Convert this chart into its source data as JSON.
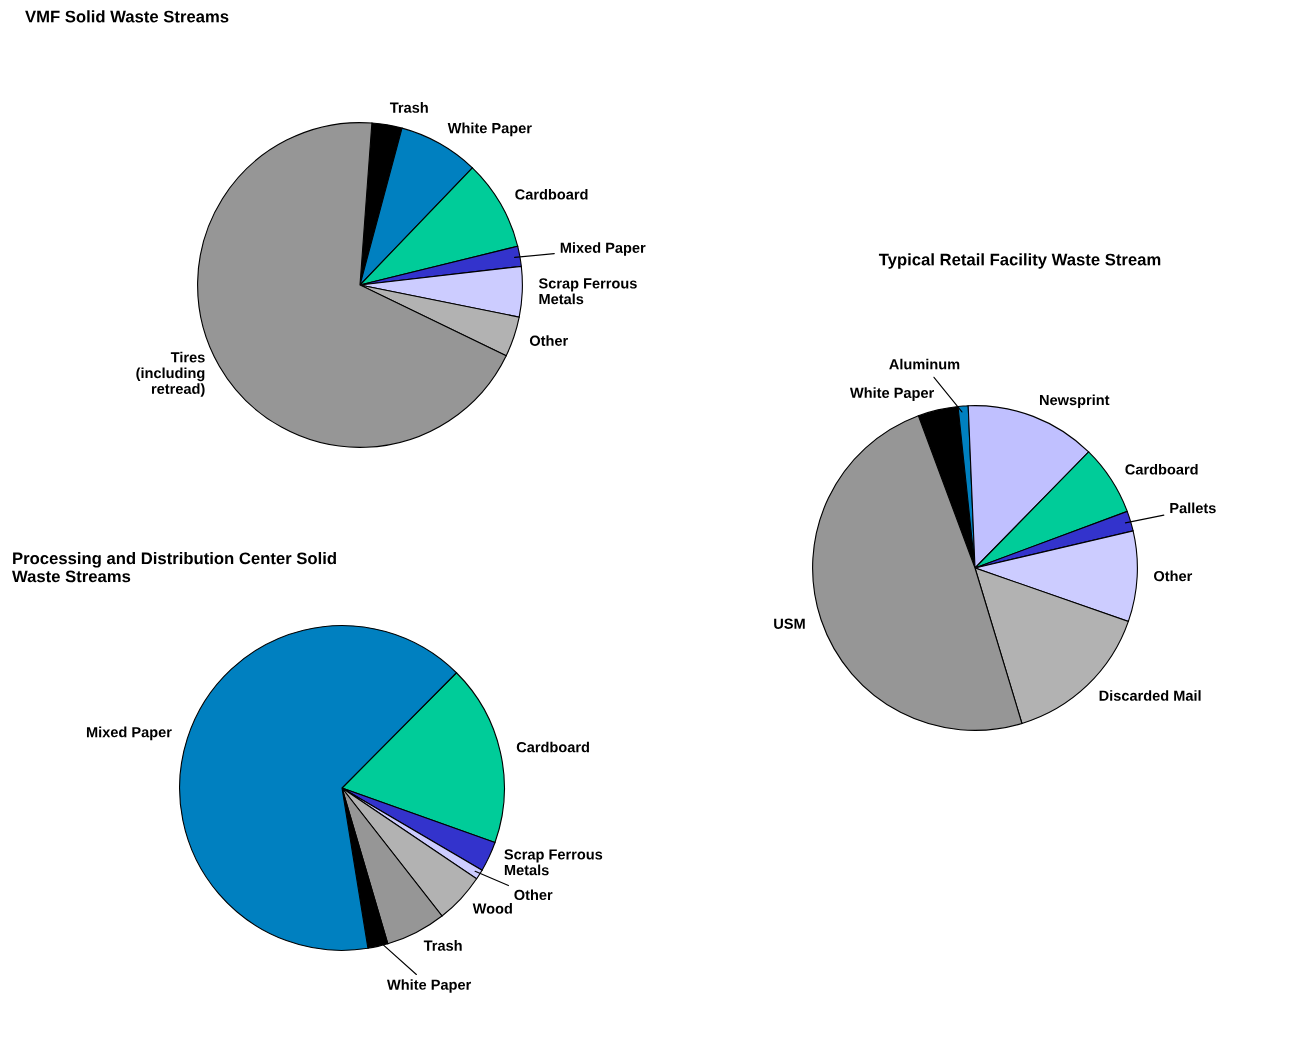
{
  "chart_data": [
    {
      "type": "pie",
      "title": "VMF Solid Waste Streams",
      "categories": [
        "Trash",
        "White Paper",
        "Cardboard",
        "Mixed Paper",
        "Scrap Ferrous Metals",
        "Other",
        "Tires (including retread)"
      ],
      "values": [
        3,
        8,
        9,
        2,
        5,
        4,
        69
      ],
      "colors": [
        "#000000",
        "#0080c0",
        "#00cc99",
        "#3333cc",
        "#ccccff",
        "#b2b2b2",
        "#969696"
      ]
    },
    {
      "type": "pie",
      "title": "Processing and Distribution Center Solid Waste Streams",
      "categories": [
        "Cardboard",
        "Scrap Ferrous Metals",
        "Other",
        "Wood",
        "Trash",
        "White Paper",
        "Mixed Paper"
      ],
      "values": [
        18,
        3,
        1,
        5,
        6,
        2,
        65
      ],
      "colors": [
        "#00cc99",
        "#3333cc",
        "#ccccff",
        "#b2b2b2",
        "#969696",
        "#000000",
        "#0080c0"
      ]
    },
    {
      "type": "pie",
      "title": "Typical Retail Facility Waste Stream",
      "categories": [
        "White Paper",
        "Aluminum",
        "Newsprint",
        "Cardboard",
        "Pallets",
        "Other",
        "Discarded Mail",
        "USM"
      ],
      "values": [
        4,
        1,
        13,
        7,
        2,
        9,
        15,
        49
      ],
      "colors": [
        "#000000",
        "#0080c0",
        "#c0c0ff",
        "#00cc99",
        "#3333cc",
        "#ccccff",
        "#b2b2b2",
        "#969696"
      ]
    }
  ]
}
